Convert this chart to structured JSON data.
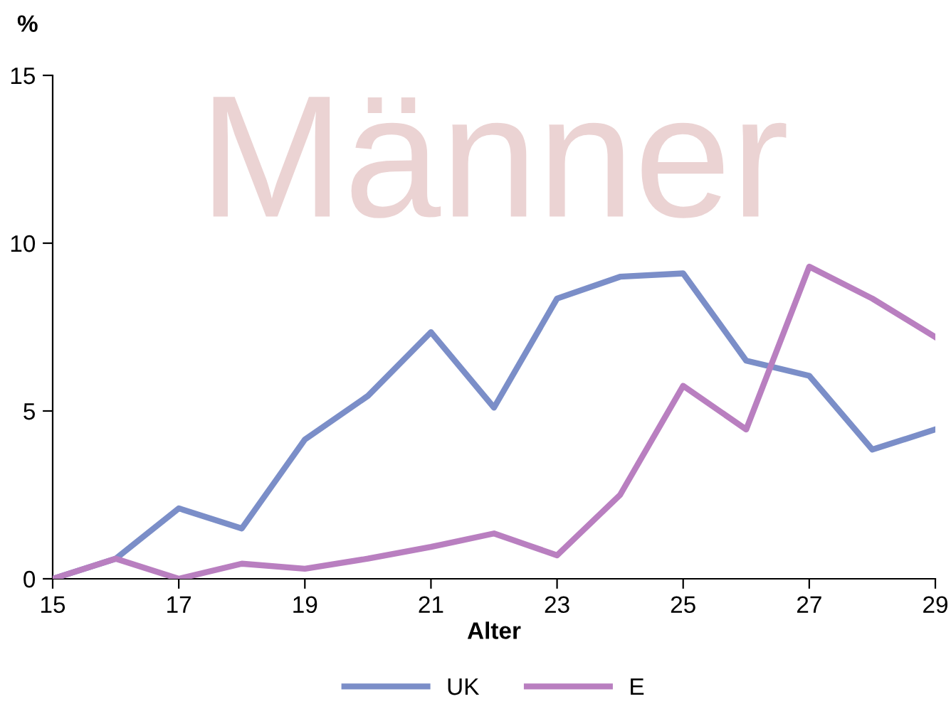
{
  "chart_data": {
    "type": "line",
    "title": "Männer",
    "xlabel": "Alter",
    "ylabel": "%",
    "x": [
      15,
      16,
      17,
      18,
      19,
      20,
      21,
      22,
      23,
      24,
      25,
      26,
      27,
      28,
      29
    ],
    "series": [
      {
        "name": "UK",
        "color": "#7b8ec8",
        "values": [
          0,
          0.6,
          2.1,
          1.5,
          4.15,
          5.45,
          7.35,
          5.1,
          8.35,
          9.0,
          9.1,
          6.5,
          6.05,
          3.85,
          4.45
        ]
      },
      {
        "name": "E",
        "color": "#b97fc0",
        "values": [
          0,
          0.6,
          0,
          0.45,
          0.3,
          0.6,
          0.95,
          1.35,
          0.7,
          2.5,
          5.75,
          4.45,
          9.3,
          8.35,
          7.2
        ]
      }
    ],
    "xlim": [
      15,
      29
    ],
    "xticks": [
      15,
      17,
      19,
      21,
      23,
      25,
      27,
      29
    ],
    "ylim": [
      0,
      15
    ],
    "yticks": [
      0,
      5,
      10,
      15
    ],
    "grid": false,
    "legend": "bottom",
    "marker": "none",
    "line_style": "solid"
  }
}
